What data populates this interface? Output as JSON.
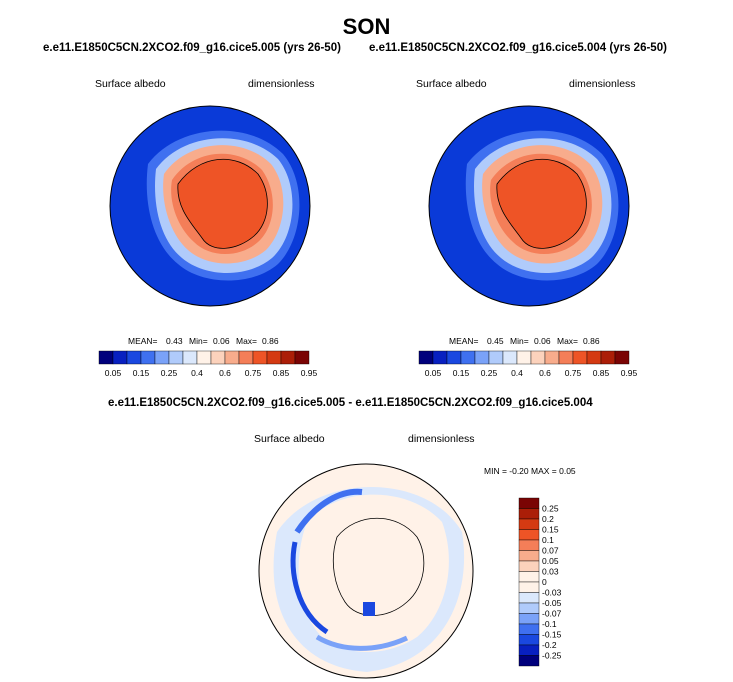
{
  "figure": {
    "season": "SON"
  },
  "panels": [
    {
      "title": "e.e11.E1850C5CN.2XCO2.f09_g16.cice5.005 (yrs 26-50)",
      "variable": "Surface albedo",
      "units": "dimensionless",
      "stats": {
        "mean_label": "MEAN=",
        "mean": "0.43",
        "min_label": "Min=",
        "min": "0.06",
        "max_label": "Max=",
        "max": "0.86"
      }
    },
    {
      "title": "e.e11.E1850C5CN.2XCO2.f09_g16.cice5.004 (yrs 26-50)",
      "variable": "Surface albedo",
      "units": "dimensionless",
      "stats": {
        "mean_label": "MEAN=",
        "mean": "0.45",
        "min_label": "Min=",
        "min": "0.06",
        "max_label": "Max=",
        "max": "0.86"
      }
    }
  ],
  "diff_panel": {
    "title": "e.e11.E1850C5CN.2XCO2.f09_g16.cice5.005 - e.e11.E1850C5CN.2XCO2.f09_g16.cice5.004",
    "variable": "Surface albedo",
    "units": "dimensionless",
    "minmax_text": "MIN =  -0.20 MAX =   0.05"
  },
  "chart_data": [
    {
      "type": "heatmap",
      "projection": "south polar stereographic",
      "field": "Surface albedo",
      "mean": 0.43,
      "min": 0.06,
      "max": 0.86,
      "colorbar": {
        "orientation": "horizontal",
        "tick_labels": [
          "0.05",
          "0.15",
          "0.25",
          "0.4",
          "0.6",
          "0.75",
          "0.85",
          "0.95"
        ],
        "colors": [
          "#00007c",
          "#0820c0",
          "#1a48e0",
          "#3f70f0",
          "#7aa2f8",
          "#b0cbfb",
          "#dbe8fc",
          "#fff2e8",
          "#fcd2bc",
          "#f8ac8c",
          "#f47e58",
          "#ee5426",
          "#d43a12",
          "#ab1e08",
          "#7a0404"
        ]
      }
    },
    {
      "type": "heatmap",
      "projection": "south polar stereographic",
      "field": "Surface albedo",
      "mean": 0.45,
      "min": 0.06,
      "max": 0.86,
      "colorbar": {
        "orientation": "horizontal",
        "tick_labels": [
          "0.05",
          "0.15",
          "0.25",
          "0.4",
          "0.6",
          "0.75",
          "0.85",
          "0.95"
        ],
        "colors": [
          "#00007c",
          "#0820c0",
          "#1a48e0",
          "#3f70f0",
          "#7aa2f8",
          "#b0cbfb",
          "#dbe8fc",
          "#fff2e8",
          "#fcd2bc",
          "#f8ac8c",
          "#f47e58",
          "#ee5426",
          "#d43a12",
          "#ab1e08",
          "#7a0404"
        ]
      }
    },
    {
      "type": "heatmap",
      "projection": "south polar stereographic",
      "field": "Surface albedo difference",
      "min": -0.2,
      "max": 0.05,
      "colorbar": {
        "orientation": "vertical",
        "tick_labels": [
          "0.25",
          "0.2",
          "0.15",
          "0.1",
          "0.07",
          "0.05",
          "0.03",
          "0",
          "-0.03",
          "-0.05",
          "-0.07",
          "-0.1",
          "-0.15",
          "-0.2",
          "-0.25"
        ],
        "colors": [
          "#7a0404",
          "#ab1e08",
          "#d43a12",
          "#ee5426",
          "#f47e58",
          "#f8ac8c",
          "#fcd2bc",
          "#fff2e8",
          "#fff2e8",
          "#dbe8fc",
          "#b0cbfb",
          "#7aa2f8",
          "#3f70f0",
          "#1a48e0",
          "#0820c0",
          "#00007c"
        ]
      }
    }
  ]
}
